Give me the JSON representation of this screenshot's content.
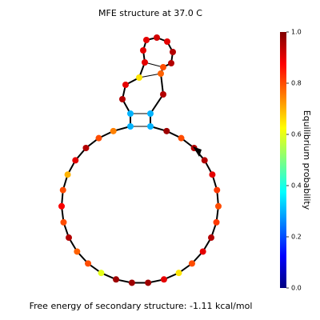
{
  "title": "MFE structure at 37.0 C",
  "footer": "Free energy of secondary structure: -1.11 kcal/mol",
  "colorbar": {
    "label": "Equilibrium probability",
    "ylim": [
      0,
      1
    ],
    "ticks": [
      {
        "value": 0,
        "label": "0.0"
      },
      {
        "value": 0.2,
        "label": "0.2"
      },
      {
        "value": 0.4,
        "label": "0.4"
      },
      {
        "value": 0.6,
        "label": "0.6"
      },
      {
        "value": 0.8,
        "label": "0.8"
      },
      {
        "value": 1,
        "label": "1.0"
      }
    ]
  },
  "nodes": [
    0.3,
    0.3,
    0.95,
    0.9,
    0.65,
    0.9,
    0.9,
    0.9,
    0.92,
    0.9,
    0.95,
    0.95,
    0.8,
    0.78,
    0.95,
    0.3,
    0.3,
    0.97,
    0.8,
    0.95,
    0.95,
    0.9,
    0.82,
    0.8,
    0.82,
    0.95,
    0.9,
    0.8,
    0.65,
    0.9,
    0.97,
    0.97,
    0.97,
    0.6,
    0.8,
    0.78,
    0.95,
    0.8,
    0.88,
    0.8,
    0.7,
    0.9,
    0.95,
    0.8,
    0.75
  ]
}
